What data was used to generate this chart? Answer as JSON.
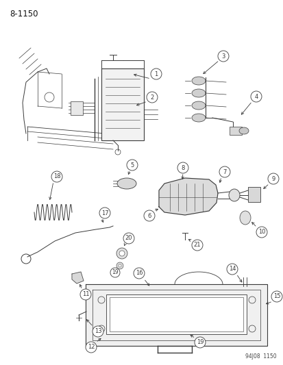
{
  "title": "8-1150",
  "footer": "94J08  1150",
  "bg_color": "#ffffff",
  "fig_width": 4.14,
  "fig_height": 5.33,
  "dpi": 100,
  "lc": "#3a3a3a",
  "lw": 0.7
}
